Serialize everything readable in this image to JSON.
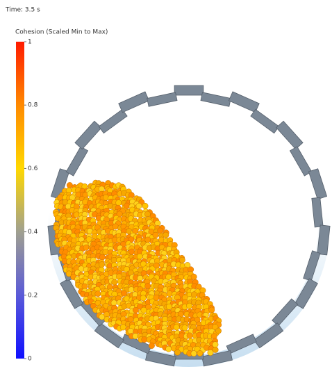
{
  "header": {
    "time": "Time: 3.5 s"
  },
  "colorbar": {
    "title": "Cohesion (Scaled Min to Max)",
    "lim": [
      0,
      1
    ],
    "ticks": [
      1,
      0.8,
      0.6,
      0.4,
      0.2,
      0
    ]
  }
}
